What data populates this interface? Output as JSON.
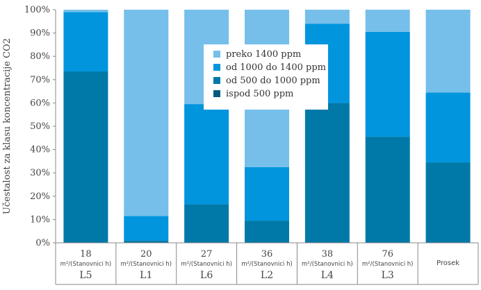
{
  "chart_data": {
    "type": "bar",
    "stacked": true,
    "ylabel": "Učestalost za klasu koncentracije CO2",
    "ylim": [
      0,
      100
    ],
    "ytick_labels": [
      "0%",
      "10%",
      "20%",
      "30%",
      "40%",
      "50%",
      "60%",
      "70%",
      "80%",
      "90%",
      "100%"
    ],
    "categories": [
      {
        "value": "18",
        "unit": "m²/(Stanovnici h)",
        "name": "L5"
      },
      {
        "value": "20",
        "unit": "m²/(Stanovnici h)",
        "name": "L1"
      },
      {
        "value": "27",
        "unit": "m²/(Stanovnici h)",
        "name": "L6"
      },
      {
        "value": "36",
        "unit": "m²/(Stanovnici h)",
        "name": "L2"
      },
      {
        "value": "38",
        "unit": "m²/(Stanovnici h)",
        "name": "L4"
      },
      {
        "value": "76",
        "unit": "m²/(Stanovnici h)",
        "name": "L3"
      },
      {
        "value": "",
        "unit": "",
        "name": "Prosek"
      }
    ],
    "series": [
      {
        "name": "ispod 500 ppm",
        "color": "#005c7d",
        "values": [
          0,
          0,
          0,
          0,
          0,
          0,
          0
        ]
      },
      {
        "name": "od 500 do 1000 ppm",
        "color": "#0079a8",
        "values": [
          73.5,
          1,
          16.5,
          9.5,
          60,
          45.5,
          34.5
        ]
      },
      {
        "name": "od 1000 do 1400 ppm",
        "color": "#0095dd",
        "values": [
          25.5,
          10.5,
          43,
          23,
          34,
          45,
          30
        ]
      },
      {
        "name": "preko 1400 ppm",
        "color": "#75bfea",
        "values": [
          1,
          88.5,
          40.5,
          67.5,
          6,
          9.5,
          35.5
        ]
      }
    ],
    "legend": {
      "position": "top-center",
      "order": [
        "preko 1400 ppm",
        "od 1000 do 1400 ppm",
        "od 500 do 1000 ppm",
        "ispod 500 ppm"
      ]
    },
    "grid": false
  }
}
